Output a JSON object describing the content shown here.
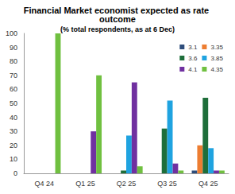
{
  "chart_data": {
    "type": "bar",
    "title": "Financial Market economist expected as rate outcome",
    "subtitle": "(% total respondents, as at 6 Dec)",
    "categories": [
      "Q4 24",
      "Q1 25",
      "Q2 25",
      "Q3 25",
      "Q4 25"
    ],
    "series": [
      {
        "name": "3.1",
        "color": "#2E4D7B",
        "values": [
          0,
          0,
          0,
          0,
          2
        ]
      },
      {
        "name": "3.35",
        "color": "#ED7D31",
        "values": [
          0,
          0,
          0,
          0,
          20
        ]
      },
      {
        "name": "3.6",
        "color": "#1E6E3A",
        "values": [
          0,
          0,
          2,
          32,
          54
        ]
      },
      {
        "name": "3.85",
        "color": "#1FA3E0",
        "values": [
          0,
          0,
          27,
          52,
          18
        ]
      },
      {
        "name": "4.1",
        "color": "#7030A0",
        "values": [
          0,
          30,
          65,
          7,
          2
        ]
      },
      {
        "name": "4.35",
        "color": "#70C040",
        "values": [
          100,
          70,
          5,
          2,
          2
        ]
      }
    ],
    "ylim": [
      0,
      100
    ],
    "yticks": [
      0,
      10,
      20,
      30,
      40,
      50,
      60,
      70,
      80,
      90,
      100
    ],
    "grid": false,
    "legend": "upper right"
  }
}
